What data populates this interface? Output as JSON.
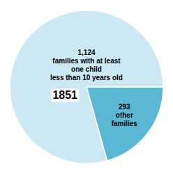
{
  "chart_data": {
    "type": "pie",
    "values": [
      293,
      1124
    ],
    "value_labels": [
      "293",
      "1,124"
    ],
    "categories": [
      "other\nfamilies",
      "families with at least\none child\nless than 10 years old"
    ],
    "colors": [
      "#5ab8d5",
      "#cce8f4"
    ],
    "data_labels": true,
    "annotations": [
      "1851"
    ]
  }
}
